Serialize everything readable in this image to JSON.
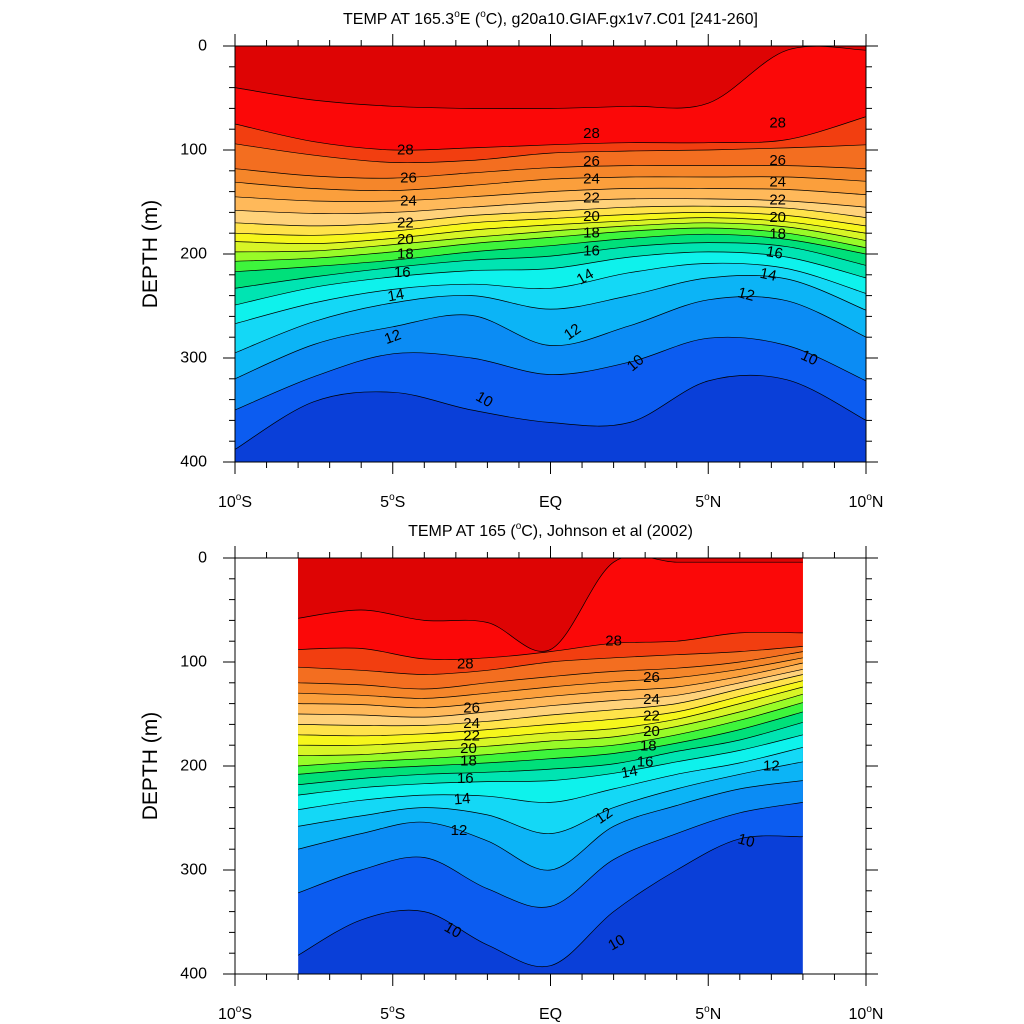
{
  "chart_data": [
    {
      "type": "contour",
      "title_pre": "TEMP AT 165.3",
      "title_sup": "o",
      "title_mid": "E (",
      "title_sup2": "o",
      "title_post": "C), g20a10.GIAF.gx1v7.C01 [241-260]",
      "ylabel": "DEPTH (m)",
      "xlim": [
        -10,
        10
      ],
      "ylim": [
        400,
        0
      ],
      "yticks": [
        {
          "v": 0,
          "label": "0"
        },
        {
          "v": 100,
          "label": "100"
        },
        {
          "v": 200,
          "label": "200"
        },
        {
          "v": 300,
          "label": "300"
        },
        {
          "v": 400,
          "label": "400"
        }
      ],
      "xticks": [
        {
          "v": -10,
          "num": "10",
          "hemi": "S"
        },
        {
          "v": -5,
          "num": "5",
          "hemi": "S"
        },
        {
          "v": 0,
          "num": "EQ",
          "hemi": ""
        },
        {
          "v": 5,
          "num": "5",
          "hemi": "N"
        },
        {
          "v": 10,
          "num": "10",
          "hemi": "N"
        }
      ],
      "data_extent": [
        -10,
        10
      ],
      "contour_levels": [
        10,
        11,
        12,
        13,
        14,
        15,
        16,
        17,
        18,
        19,
        20,
        21,
        22,
        23,
        24,
        25,
        26,
        27,
        28,
        29
      ],
      "isotherm_depths": {
        "lat": [
          -10,
          -7.5,
          -5,
          -2.5,
          0,
          2.5,
          5,
          7.5,
          10
        ],
        "T29": [
          40,
          52,
          58,
          60,
          60,
          58,
          55,
          4,
          4
        ],
        "T28": [
          75,
          92,
          100,
          98,
          95,
          93,
          93,
          90,
          68
        ],
        "T27": [
          94,
          105,
          112,
          110,
          103,
          101,
          100,
          98,
          95
        ],
        "T26": [
          118,
          125,
          127,
          122,
          117,
          115,
          115,
          115,
          118
        ],
        "T25": [
          131,
          137,
          139,
          134,
          128,
          126,
          126,
          126,
          130
        ],
        "T24": [
          145,
          149,
          149,
          145,
          140,
          137,
          137,
          138,
          143
        ],
        "T23": [
          158,
          161,
          160,
          155,
          150,
          147,
          147,
          149,
          155
        ],
        "T22": [
          170,
          173,
          170,
          163,
          159,
          155,
          154,
          156,
          165
        ],
        "T21": [
          180,
          182,
          178,
          170,
          166,
          162,
          160,
          163,
          173
        ],
        "T20": [
          188,
          190,
          185,
          177,
          172,
          168,
          165,
          169,
          180
        ],
        "T19": [
          198,
          197,
          191,
          184,
          178,
          173,
          170,
          174,
          187
        ],
        "T18": [
          207,
          204,
          198,
          190,
          184,
          178,
          175,
          180,
          194
        ],
        "T17": [
          217,
          212,
          206,
          198,
          192,
          185,
          181,
          186,
          200
        ],
        "T16": [
          233,
          222,
          213,
          206,
          202,
          193,
          189,
          193,
          211
        ],
        "T15": [
          249,
          232,
          222,
          216,
          214,
          203,
          198,
          203,
          223
        ],
        "T14": [
          267,
          247,
          234,
          229,
          233,
          218,
          209,
          214,
          238
        ],
        "T13": [
          295,
          265,
          247,
          240,
          253,
          240,
          223,
          224,
          254
        ],
        "T12": [
          320,
          287,
          270,
          259,
          288,
          269,
          244,
          245,
          280
        ],
        "T11": [
          350,
          318,
          296,
          300,
          316,
          304,
          281,
          288,
          322
        ],
        "T10": [
          388,
          342,
          333,
          350,
          362,
          362,
          322,
          321,
          360
        ]
      },
      "line_labels": [
        {
          "text": "28",
          "lat": -4.6,
          "depth": 100,
          "angle": 0
        },
        {
          "text": "26",
          "lat": -4.5,
          "depth": 127,
          "angle": 0
        },
        {
          "text": "24",
          "lat": -4.5,
          "depth": 149,
          "angle": 0
        },
        {
          "text": "22",
          "lat": -4.6,
          "depth": 170,
          "angle": 0
        },
        {
          "text": "20",
          "lat": -4.6,
          "depth": 186,
          "angle": 0
        },
        {
          "text": "18",
          "lat": -4.6,
          "depth": 200,
          "angle": 0
        },
        {
          "text": "16",
          "lat": -4.7,
          "depth": 218,
          "angle": 0
        },
        {
          "text": "14",
          "lat": -4.9,
          "depth": 240,
          "angle": -10
        },
        {
          "text": "12",
          "lat": -5.0,
          "depth": 280,
          "angle": -20
        },
        {
          "text": "10",
          "lat": -2.1,
          "depth": 340,
          "angle": 30
        },
        {
          "text": "28",
          "lat": 1.3,
          "depth": 84,
          "angle": 0
        },
        {
          "text": "26",
          "lat": 1.3,
          "depth": 111,
          "angle": 0
        },
        {
          "text": "24",
          "lat": 1.3,
          "depth": 128,
          "angle": 0
        },
        {
          "text": "22",
          "lat": 1.3,
          "depth": 146,
          "angle": 0
        },
        {
          "text": "20",
          "lat": 1.3,
          "depth": 164,
          "angle": 0
        },
        {
          "text": "18",
          "lat": 1.3,
          "depth": 180,
          "angle": 0
        },
        {
          "text": "16",
          "lat": 1.3,
          "depth": 197,
          "angle": 0
        },
        {
          "text": "14",
          "lat": 1.1,
          "depth": 222,
          "angle": -30
        },
        {
          "text": "12",
          "lat": 0.7,
          "depth": 275,
          "angle": -35
        },
        {
          "text": "10",
          "lat": 2.7,
          "depth": 305,
          "angle": -40
        },
        {
          "text": "28",
          "lat": 7.2,
          "depth": 74,
          "angle": 0
        },
        {
          "text": "26",
          "lat": 7.2,
          "depth": 110,
          "angle": 0
        },
        {
          "text": "24",
          "lat": 7.2,
          "depth": 131,
          "angle": 0
        },
        {
          "text": "22",
          "lat": 7.2,
          "depth": 148,
          "angle": 0
        },
        {
          "text": "20",
          "lat": 7.2,
          "depth": 165,
          "angle": 0
        },
        {
          "text": "18",
          "lat": 7.2,
          "depth": 181,
          "angle": 0
        },
        {
          "text": "16",
          "lat": 7.1,
          "depth": 199,
          "angle": 10
        },
        {
          "text": "14",
          "lat": 6.9,
          "depth": 220,
          "angle": 12
        },
        {
          "text": "12",
          "lat": 6.2,
          "depth": 239,
          "angle": 15
        },
        {
          "text": "10",
          "lat": 8.2,
          "depth": 300,
          "angle": 25
        }
      ]
    },
    {
      "type": "contour",
      "title_pre": "TEMP AT 165 (",
      "title_sup": "o",
      "title_post": "C), Johnson et al (2002)",
      "ylabel": "DEPTH (m)",
      "xlim": [
        -10,
        10
      ],
      "ylim": [
        400,
        0
      ],
      "yticks": [
        {
          "v": 0,
          "label": "0"
        },
        {
          "v": 100,
          "label": "100"
        },
        {
          "v": 200,
          "label": "200"
        },
        {
          "v": 300,
          "label": "300"
        },
        {
          "v": 400,
          "label": "400"
        }
      ],
      "xticks": [
        {
          "v": -10,
          "num": "10",
          "hemi": "S"
        },
        {
          "v": -5,
          "num": "5",
          "hemi": "S"
        },
        {
          "v": 0,
          "num": "EQ",
          "hemi": ""
        },
        {
          "v": 5,
          "num": "5",
          "hemi": "N"
        },
        {
          "v": 10,
          "num": "10",
          "hemi": "N"
        }
      ],
      "data_extent": [
        -8,
        8
      ],
      "contour_levels": [
        10,
        11,
        12,
        13,
        14,
        15,
        16,
        17,
        18,
        19,
        20,
        21,
        22,
        23,
        24,
        25,
        26,
        27,
        28,
        29
      ],
      "isotherm_depths": {
        "lat": [
          -8,
          -6,
          -4,
          -2,
          0,
          2,
          4,
          6,
          8
        ],
        "T29": [
          58,
          50,
          60,
          62,
          88,
          4,
          4,
          4,
          4
        ],
        "T28": [
          88,
          87,
          97,
          96,
          90,
          82,
          80,
          72,
          72
        ],
        "T27": [
          105,
          108,
          112,
          108,
          100,
          96,
          93,
          90,
          85
        ],
        "T26": [
          120,
          122,
          126,
          120,
          114,
          109,
          106,
          100,
          90
        ],
        "T25": [
          130,
          132,
          135,
          130,
          124,
          119,
          115,
          107,
          96
        ],
        "T24": [
          140,
          141,
          144,
          139,
          133,
          128,
          124,
          114,
          101
        ],
        "T23": [
          150,
          151,
          153,
          148,
          142,
          137,
          132,
          120,
          107
        ],
        "T22": [
          160,
          161,
          161,
          157,
          151,
          146,
          140,
          126,
          112
        ],
        "T21": [
          170,
          171,
          169,
          165,
          160,
          155,
          148,
          133,
          118
        ],
        "T20": [
          180,
          180,
          177,
          173,
          168,
          164,
          155,
          140,
          124
        ],
        "T19": [
          190,
          189,
          185,
          181,
          176,
          172,
          162,
          148,
          131
        ],
        "T18": [
          200,
          196,
          193,
          189,
          184,
          180,
          170,
          156,
          139
        ],
        "T17": [
          208,
          203,
          200,
          197,
          193,
          188,
          178,
          165,
          148
        ],
        "T16": [
          218,
          212,
          208,
          206,
          203,
          198,
          186,
          175,
          158
        ],
        "T15": [
          228,
          221,
          217,
          215,
          214,
          207,
          196,
          185,
          170
        ],
        "T14": [
          242,
          233,
          228,
          229,
          235,
          222,
          208,
          197,
          182
        ],
        "T13": [
          258,
          248,
          240,
          247,
          265,
          240,
          222,
          208,
          196
        ],
        "T12": [
          280,
          265,
          254,
          272,
          300,
          258,
          238,
          222,
          214
        ],
        "T11": [
          322,
          300,
          288,
          318,
          335,
          290,
          265,
          245,
          235
        ],
        "T10": [
          382,
          348,
          340,
          372,
          392,
          340,
          300,
          270,
          268
        ]
      },
      "line_labels": [
        {
          "text": "28",
          "lat": -2.7,
          "depth": 102,
          "angle": 0
        },
        {
          "text": "26",
          "lat": -2.5,
          "depth": 144,
          "angle": 0
        },
        {
          "text": "24",
          "lat": -2.5,
          "depth": 159,
          "angle": 0
        },
        {
          "text": "22",
          "lat": -2.5,
          "depth": 171,
          "angle": 0
        },
        {
          "text": "20",
          "lat": -2.6,
          "depth": 183,
          "angle": 0
        },
        {
          "text": "18",
          "lat": -2.6,
          "depth": 195,
          "angle": 0
        },
        {
          "text": "16",
          "lat": -2.7,
          "depth": 212,
          "angle": 0
        },
        {
          "text": "14",
          "lat": -2.8,
          "depth": 232,
          "angle": -5
        },
        {
          "text": "12",
          "lat": -2.9,
          "depth": 262,
          "angle": 0
        },
        {
          "text": "10",
          "lat": -3.1,
          "depth": 358,
          "angle": 30
        },
        {
          "text": "28",
          "lat": 2.0,
          "depth": 80,
          "angle": 0
        },
        {
          "text": "26",
          "lat": 3.2,
          "depth": 115,
          "angle": 0
        },
        {
          "text": "24",
          "lat": 3.2,
          "depth": 136,
          "angle": 0
        },
        {
          "text": "22",
          "lat": 3.2,
          "depth": 152,
          "angle": 0
        },
        {
          "text": "20",
          "lat": 3.2,
          "depth": 167,
          "angle": 0
        },
        {
          "text": "18",
          "lat": 3.1,
          "depth": 181,
          "angle": 0
        },
        {
          "text": "16",
          "lat": 3.0,
          "depth": 196,
          "angle": 0
        },
        {
          "text": "14",
          "lat": 2.5,
          "depth": 206,
          "angle": -10
        },
        {
          "text": "12",
          "lat": 1.7,
          "depth": 248,
          "angle": -35
        },
        {
          "text": "10",
          "lat": 2.1,
          "depth": 370,
          "angle": -30
        },
        {
          "text": "12",
          "lat": 7.0,
          "depth": 200,
          "angle": 0
        },
        {
          "text": "10",
          "lat": 6.2,
          "depth": 272,
          "angle": 15
        }
      ]
    }
  ]
}
